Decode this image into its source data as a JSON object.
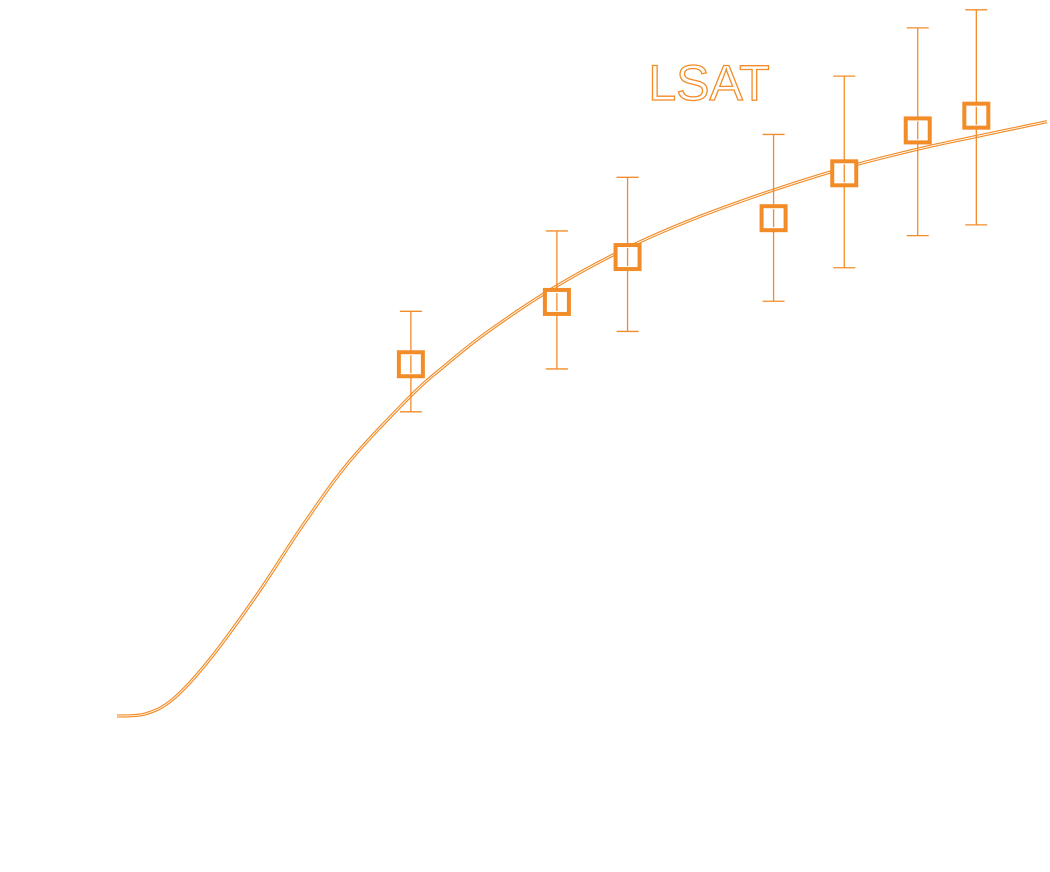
{
  "chart_data": {
    "type": "scatter",
    "title": "",
    "xlabel": "",
    "ylabel": "",
    "xlim": [
      0,
      100
    ],
    "ylim": [
      0,
      100
    ],
    "grid": false,
    "series": [
      {
        "name": "LSAT",
        "color": "#f28c28",
        "marker": "open-square",
        "points": [
          {
            "x": 31.6,
            "y": 52.5,
            "err_low": 7.1,
            "err_high": 7.9
          },
          {
            "x": 47.3,
            "y": 61.8,
            "err_low": 10.0,
            "err_high": 10.6
          },
          {
            "x": 54.9,
            "y": 68.5,
            "err_low": 11.1,
            "err_high": 11.9
          },
          {
            "x": 70.6,
            "y": 74.3,
            "err_low": 12.4,
            "err_high": 12.5
          },
          {
            "x": 78.2,
            "y": 81.0,
            "err_low": 14.1,
            "err_high": 14.5
          },
          {
            "x": 86.1,
            "y": 87.4,
            "err_low": 15.7,
            "err_high": 15.3
          },
          {
            "x": 92.4,
            "y": 89.6,
            "err_low": 16.3,
            "err_high": 15.8
          }
        ],
        "curve": [
          {
            "x": 0.0,
            "y": 0.0
          },
          {
            "x": 3.0,
            "y": 0.3
          },
          {
            "x": 6.0,
            "y": 2.5
          },
          {
            "x": 10.0,
            "y": 8.5
          },
          {
            "x": 15.0,
            "y": 18.0
          },
          {
            "x": 20.0,
            "y": 28.5
          },
          {
            "x": 25.0,
            "y": 38.0
          },
          {
            "x": 31.6,
            "y": 47.8
          },
          {
            "x": 35.0,
            "y": 52.0
          },
          {
            "x": 40.0,
            "y": 57.5
          },
          {
            "x": 47.3,
            "y": 64.2
          },
          {
            "x": 54.9,
            "y": 69.9
          },
          {
            "x": 62.0,
            "y": 74.2
          },
          {
            "x": 70.6,
            "y": 78.5
          },
          {
            "x": 78.2,
            "y": 81.8
          },
          {
            "x": 86.1,
            "y": 84.6
          },
          {
            "x": 92.4,
            "y": 86.5
          },
          {
            "x": 100.0,
            "y": 88.7
          }
        ]
      }
    ]
  }
}
